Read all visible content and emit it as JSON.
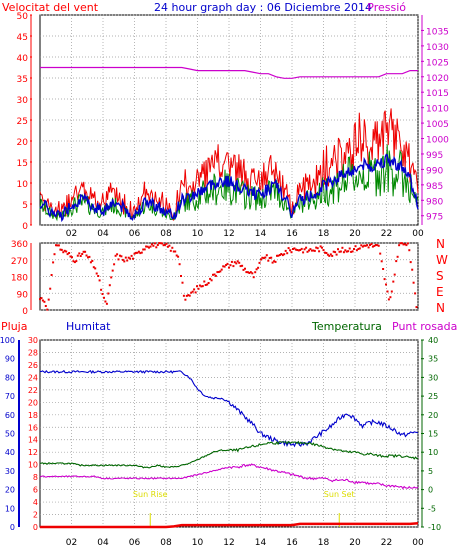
{
  "header": {
    "left_title": "Velocitat del vent",
    "center_title": "24 hour graph day : 06 Diciembre 2014",
    "right_title": "Pressió"
  },
  "legend2": {
    "rain": "Pluja",
    "humidity": "Humitat",
    "temperature": "Temperatura",
    "dewpoint": "Punt rosada"
  },
  "colors": {
    "wind_avg": "#0000cc",
    "wind_gust": "#ee0000",
    "wind_green": "#008800",
    "pressure": "#cc00cc",
    "direction": "#ee0000",
    "humidity": "#0000cc",
    "temperature": "#006600",
    "dewpoint": "#cc00cc",
    "rain": "#ee0000",
    "sun": "#dddd00",
    "grid": "#999999",
    "axis_left": "#ff0000",
    "axis_humidity": "#0000cc",
    "axis_temp": "#006600",
    "axis_pressure": "#cc00cc"
  },
  "sun_labels": [
    "Sun Rise",
    "Sun Set"
  ],
  "chart_data": [
    {
      "type": "line",
      "title": "24 hour graph day : 06 Diciembre 2014",
      "x_ticks": [
        "02",
        "04",
        "06",
        "08",
        "10",
        "12",
        "14",
        "16",
        "18",
        "20",
        "22",
        "00"
      ],
      "ylim": [
        0,
        50
      ],
      "y_ticks": [
        "0",
        "5",
        "10",
        "15",
        "20",
        "25",
        "30",
        "35",
        "40",
        "45",
        "50"
      ],
      "y2lim": [
        972,
        1040
      ],
      "y2_ticks": [
        "975",
        "980",
        "985",
        "990",
        "995",
        "1000",
        "1005",
        "1010",
        "1015",
        "1020",
        "1025",
        "1030",
        "1035"
      ],
      "x_hours_gust": [
        0,
        0.5,
        1,
        1.5,
        2,
        2.5,
        3,
        3.5,
        4,
        4.5,
        5,
        5.5,
        6,
        6.5,
        7,
        7.5,
        8,
        8.5,
        9,
        9.5,
        10,
        10.5,
        11,
        11.5,
        12,
        12.5,
        13,
        13.5,
        14,
        14.5,
        15,
        15.5,
        16,
        16.5,
        17,
        17.5,
        18,
        18.5,
        19,
        19.5,
        20,
        20.5,
        21,
        21.5,
        22,
        22.5,
        23,
        23.5,
        24
      ],
      "series": [
        {
          "name": "Velocitat del vent",
          "axis": "left",
          "values": [
            10,
            7,
            4,
            5,
            9,
            11,
            10,
            8,
            6,
            10,
            9,
            6,
            4,
            9,
            10,
            8,
            5,
            4,
            11,
            12,
            14,
            16,
            18,
            19,
            19,
            17,
            15,
            14,
            13,
            16,
            17,
            12,
            5,
            11,
            12,
            14,
            17,
            19,
            21,
            23,
            24,
            26,
            25,
            27,
            28,
            27,
            25,
            20,
            9
          ]
        },
        {
          "name": "Pressió",
          "axis": "right",
          "values": [
            1023,
            1023,
            1023,
            1023,
            1023,
            1023,
            1023,
            1023,
            1023,
            1023,
            1023,
            1023,
            1023,
            1023,
            1023,
            1023,
            1023,
            1023,
            1023,
            1022.5,
            1022,
            1022,
            1022,
            1022,
            1022,
            1022,
            1022,
            1021.5,
            1021,
            1021,
            1020,
            1019.5,
            1019.5,
            1020,
            1020,
            1020,
            1020,
            1020,
            1020,
            1020,
            1020,
            1020,
            1020,
            1020,
            1021,
            1021,
            1021,
            1022,
            1022
          ]
        }
      ]
    },
    {
      "type": "scatter",
      "ylim": [
        0,
        360
      ],
      "y_ticks": [
        "0",
        "90",
        "180",
        "270",
        "360"
      ],
      "compass_labels": [
        "N",
        "W",
        "S",
        "E",
        "N"
      ],
      "x": [
        0.2,
        0.5,
        1,
        1.4,
        1.8,
        2.2,
        2.8,
        3.5,
        4.2,
        4.8,
        5.5,
        6.2,
        6.8,
        7.5,
        8.2,
        8.8,
        9.2,
        9.6,
        10.2,
        10.8,
        11.4,
        12,
        12.5,
        13,
        13.6,
        14.2,
        14.8,
        15.5,
        16.2,
        17,
        17.8,
        18.5,
        19.2,
        20,
        20.8,
        21.5,
        22.2,
        22.8,
        23.4,
        23.9
      ],
      "values": [
        60,
        10,
        360,
        320,
        300,
        270,
        310,
        230,
        20,
        290,
        270,
        300,
        350,
        350,
        340,
        290,
        50,
        90,
        130,
        160,
        220,
        240,
        260,
        220,
        180,
        290,
        260,
        310,
        330,
        320,
        330,
        300,
        320,
        330,
        350,
        340,
        30,
        350,
        360,
        20
      ]
    },
    {
      "type": "line",
      "ylim_humidity": [
        0,
        100
      ],
      "y_ticks_humidity": [
        "0",
        "10",
        "20",
        "30",
        "40",
        "50",
        "60",
        "70",
        "80",
        "90",
        "100"
      ],
      "ylim_rain": [
        0,
        30
      ],
      "y_ticks_rain": [
        "0",
        "2",
        "4",
        "6",
        "8",
        "10",
        "12",
        "14",
        "16",
        "18",
        "20",
        "22",
        "24",
        "26",
        "28",
        "30"
      ],
      "ylim_temp": [
        -10,
        40
      ],
      "y_ticks_temp": [
        "-10",
        "-5",
        "0",
        "5",
        "10",
        "15",
        "20",
        "25",
        "30",
        "35",
        "40"
      ],
      "x_ticks": [
        "02",
        "04",
        "06",
        "08",
        "10",
        "12",
        "14",
        "16",
        "18",
        "20",
        "22",
        "00"
      ],
      "x_hours": [
        0,
        0.5,
        1,
        1.5,
        2,
        2.5,
        3,
        3.5,
        4,
        4.5,
        5,
        5.5,
        6,
        6.5,
        7,
        7.5,
        8,
        8.5,
        9,
        9.5,
        10,
        10.5,
        11,
        11.5,
        12,
        12.5,
        13,
        13.5,
        14,
        14.5,
        15,
        15.5,
        16,
        16.5,
        17,
        17.5,
        18,
        18.5,
        19,
        19.5,
        20,
        20.5,
        21,
        21.5,
        22,
        22.5,
        23,
        23.5,
        24
      ],
      "series": [
        {
          "name": "Humitat",
          "axis": "humidity",
          "values": [
            83,
            83,
            83,
            83,
            83,
            83,
            83,
            83,
            83,
            83,
            83,
            83,
            83,
            83,
            83,
            83,
            83,
            83,
            83,
            80,
            74,
            70,
            69,
            69,
            67,
            63,
            59,
            55,
            50,
            48,
            46,
            45,
            44,
            44,
            45,
            48,
            51,
            54,
            58,
            61,
            58,
            54,
            56,
            56,
            54,
            52,
            49,
            50,
            51
          ]
        },
        {
          "name": "Temperatura",
          "axis": "temp",
          "values": [
            7,
            7,
            7,
            7,
            7,
            6.5,
            6.5,
            6.5,
            6.5,
            6.5,
            6.5,
            6.5,
            6.5,
            6,
            6,
            6.5,
            6,
            6,
            6.5,
            7,
            8,
            9,
            10,
            10.5,
            10.5,
            10.5,
            11,
            11.5,
            12,
            12.5,
            12.5,
            12.5,
            12.5,
            12.5,
            12.5,
            12,
            11.5,
            11,
            10.5,
            10,
            10,
            9.5,
            9.5,
            9,
            9,
            9,
            9,
            8.5,
            8.5
          ]
        },
        {
          "name": "Punt rosada",
          "axis": "temp",
          "values": [
            3.5,
            3.5,
            3.5,
            3.5,
            3.5,
            3.5,
            3.5,
            3.5,
            3,
            3,
            3,
            3,
            3,
            3,
            3,
            3,
            3,
            3,
            3,
            3.5,
            4,
            4.5,
            5,
            5.5,
            6,
            6,
            6.5,
            6.5,
            6,
            5.5,
            5,
            4.5,
            4,
            3.5,
            3,
            3,
            3,
            2.5,
            2.5,
            2.5,
            2,
            2,
            1.5,
            1.5,
            1,
            1,
            0.5,
            0.5,
            0.5
          ]
        },
        {
          "name": "Pluja",
          "axis": "rain",
          "values": [
            0,
            0,
            0,
            0,
            0,
            0,
            0,
            0,
            0,
            0,
            0,
            0,
            0,
            0,
            0,
            0,
            0,
            0.1,
            0.3,
            0.3,
            0.3,
            0.3,
            0.3,
            0.3,
            0.3,
            0.3,
            0.3,
            0.3,
            0.3,
            0.3,
            0.3,
            0.3,
            0.3,
            0.5,
            0.5,
            0.5,
            0.5,
            0.5,
            0.5,
            0.5,
            0.5,
            0.5,
            0.5,
            0.5,
            0.5,
            0.5,
            0.5,
            0.5,
            0.6
          ]
        }
      ],
      "sun_rise_hour": 7.0,
      "sun_set_hour": 19.0
    }
  ]
}
